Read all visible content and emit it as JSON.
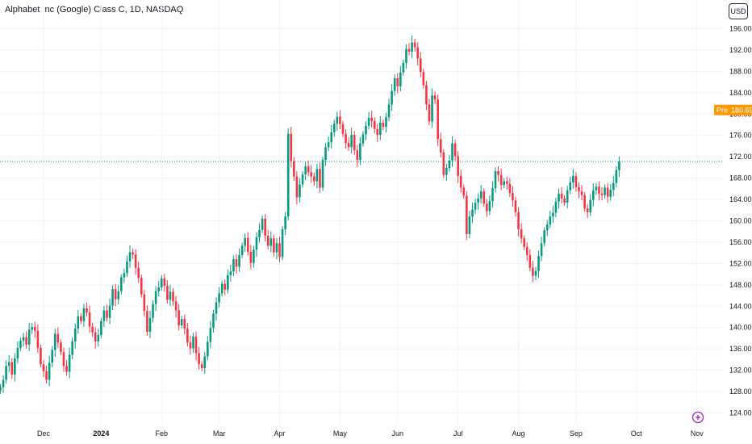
{
  "header": {
    "title": "Alphabet Inc (Google) Class C, 1D, NASDAQ",
    "currency": "USD"
  },
  "colors": {
    "up": "#089981",
    "down": "#f23645",
    "grid": "#f0f3fa",
    "price_line": "#089981",
    "pre_label": "#ff9800",
    "snapshot_icon": "#9c27b0"
  },
  "chart_data": {
    "type": "candlestick",
    "title": "Alphabet Inc (Google) Class C, 1D, NASDAQ",
    "currency": "USD",
    "ylim": [
      122,
      198
    ],
    "y_ticks": [
      124,
      128,
      132,
      136,
      140,
      144,
      148,
      152,
      156,
      160,
      164,
      168,
      172,
      176,
      180,
      184,
      188,
      192,
      196
    ],
    "y_tick_labels": [
      "124.00",
      "128.00",
      "132.00",
      "136.00",
      "140.00",
      "144.00",
      "148.00",
      "152.00",
      "156.00",
      "160.00",
      "164.00",
      "168.00",
      "172.00",
      "176.00",
      "180.00",
      "184.00",
      "188.00",
      "192.00",
      "196.00"
    ],
    "x_labels": [
      "Dec",
      "2024",
      "Feb",
      "Mar",
      "Apr",
      "May",
      "Jun",
      "Jul",
      "Aug",
      "Sep",
      "Oct",
      "Nov"
    ],
    "x_label_positions": [
      15,
      35,
      56,
      76,
      97,
      118,
      138,
      159,
      180,
      200,
      221,
      242
    ],
    "grid": true,
    "current_price": 171.1,
    "pre_market": {
      "label": "Pre",
      "value": "180.69",
      "price": 180.69
    },
    "closes": [
      128.8,
      130.2,
      132.8,
      133.5,
      131.2,
      134.2,
      136.2,
      137.5,
      138.2,
      136.8,
      139.6,
      140.1,
      139.4,
      136.2,
      133.1,
      131.8,
      130.2,
      133.4,
      135.8,
      138.8,
      137.2,
      135.4,
      132.8,
      131.7,
      134.9,
      137.4,
      139.8,
      142.1,
      141.2,
      143.6,
      142.8,
      140.2,
      139.1,
      137.4,
      138.6,
      141.2,
      143.2,
      141.8,
      144.1,
      147.2,
      145.3,
      146.8,
      149.4,
      150.2,
      152.4,
      154.1,
      153.7,
      151.2,
      149.3,
      146.2,
      143.1,
      139.2,
      141.8,
      144.4,
      146.8,
      147.5,
      149.2,
      147.8,
      145.2,
      146.7,
      144.9,
      143.2,
      140.4,
      141.6,
      139.8,
      137.2,
      136.1,
      138.3,
      135.2,
      133.1,
      132.4,
      134.6,
      137.3,
      139.9,
      142.6,
      144.7,
      146.4,
      148.2,
      147.1,
      149.8,
      150.5,
      152.8,
      151.4,
      153.6,
      155.3,
      156.8,
      154.2,
      152.1,
      154.6,
      156.9,
      158.3,
      160.4,
      157.2,
      155.3,
      156.7,
      154.1,
      155.8,
      153.2,
      158.4,
      160.8,
      176.3,
      171.2,
      168.3,
      164.4,
      166.8,
      168.7,
      170.2,
      169.1,
      168.3,
      167.4,
      169.7,
      166.2,
      171.4,
      173.8,
      174.7,
      176.6,
      178.2,
      179.5,
      178.1,
      176.3,
      174.6,
      173.8,
      176.1,
      173.2,
      171.4,
      174.5,
      176.2,
      177.8,
      179.3,
      178.7,
      177.2,
      176.1,
      178.4,
      177.6,
      179.4,
      181.8,
      184.3,
      186.7,
      185.2,
      187.8,
      189.6,
      192.2,
      191.7,
      193.4,
      192.5,
      190.4,
      187.9,
      185.4,
      181.8,
      178.6,
      183.5,
      182.7,
      175.3,
      172.8,
      168.6,
      169.9,
      171.3,
      174.5,
      172.1,
      168.4,
      166.2,
      164.7,
      157.5,
      160.8,
      162.1,
      163.4,
      164.2,
      165.5,
      163.2,
      161.8,
      163.7,
      166.1,
      169.3,
      168.6,
      166.7,
      167.4,
      166.9,
      165.2,
      163.8,
      161.6,
      158.4,
      156.7,
      155.1,
      153.6,
      151.2,
      149.7,
      150.6,
      153.4,
      155.8,
      158.2,
      159.3,
      160.8,
      161.5,
      163.6,
      165.1,
      164.2,
      163.4,
      165.7,
      167.2,
      168.4,
      166.3,
      165.5,
      164.8,
      162.3,
      161.6,
      163.9,
      165.7,
      166.4,
      165.1,
      164.8,
      166.2,
      164.5,
      165.8,
      167.1,
      169.5,
      171.1
    ]
  },
  "snapshot_icon": "snapshot-icon"
}
